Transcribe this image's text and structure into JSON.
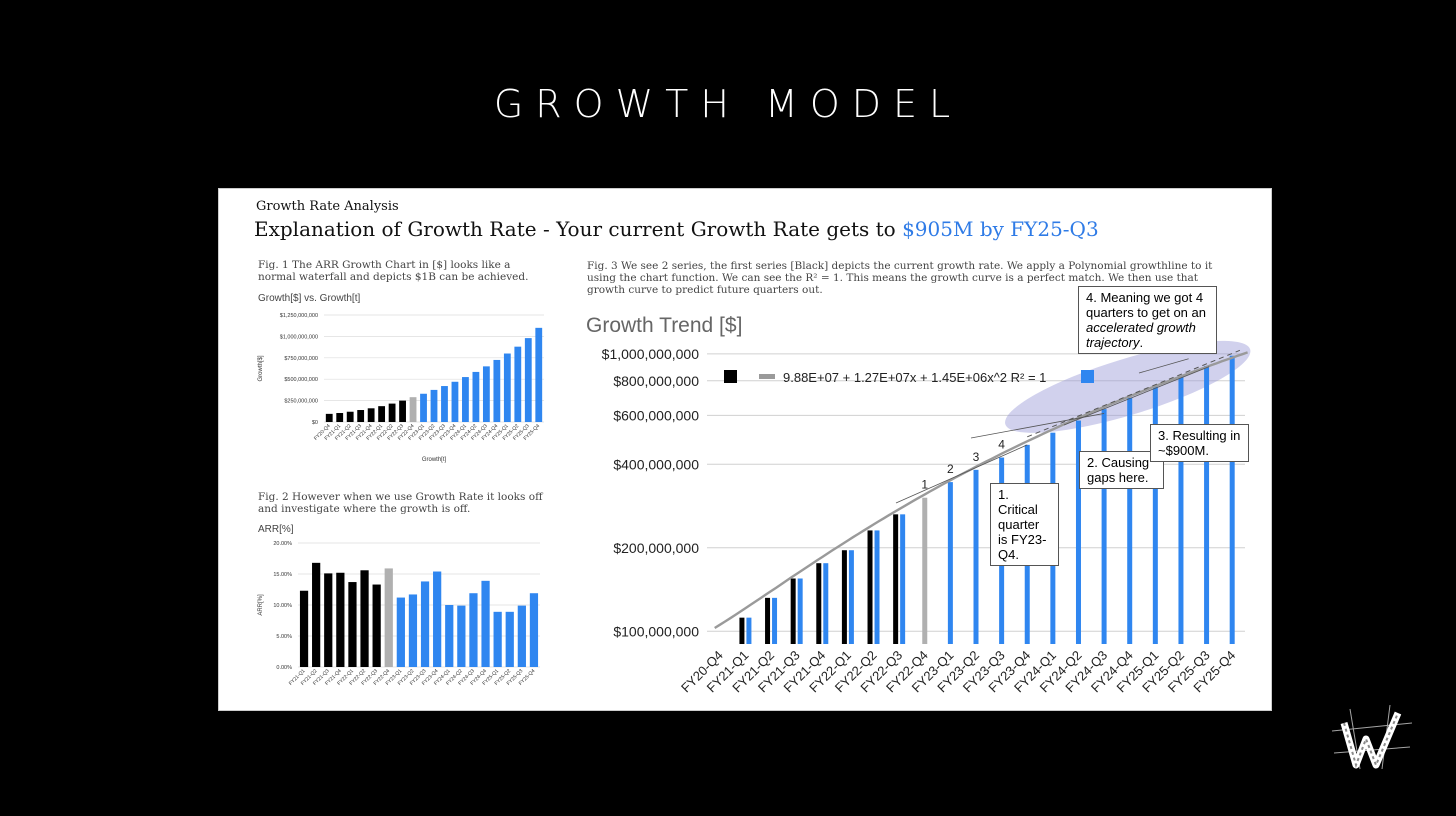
{
  "slide": {
    "title": "GROWTH MODEL"
  },
  "card": {
    "small_title": "Growth Rate Analysis",
    "headline": "Explanation of Growth Rate - Your current Growth Rate gets to ",
    "headline_highlight": "$905M by FY25-Q3",
    "fig1_caption": "Fig. 1 The ARR Growth Chart in [$] looks like a normal waterfall and depicts $1B can be achieved.",
    "fig2_caption": "Fig. 2  However when we use Growth Rate it looks off and investigate where the growth is off.",
    "fig3_caption": "Fig. 3 We see 2 series, the first series [Black] depicts the current growth rate.  We apply a Polynomial growthline to it using the chart function.  We can see the R² = 1.  This means the growth curve is a perfect match.  We then use that growth curve to predict future quarters out."
  },
  "callouts": {
    "c1": "1. Critical quarter is FY23-Q4.",
    "c2": "2. Causing gaps here.",
    "c3": "3. Resulting in ~$900M.",
    "c4_line1": "4. Meaning we got 4 quarters to get on an ",
    "c4_italic": "accelerated growth trajectory",
    "c4_end": "."
  },
  "chart_data": [
    {
      "type": "bar",
      "title": "Growth[$] vs. Growth[t]",
      "xlabel": "Growth[t]",
      "ylabel": "Growth[$]",
      "ylim": [
        0,
        1250000000
      ],
      "yticks": [
        "$0",
        "$250,000,000",
        "$500,000,000",
        "$750,000,000",
        "$1,000,000,000",
        "$1,250,000,000"
      ],
      "categories": [
        "FY20-Q4",
        "FY21-Q1",
        "FY21-Q2",
        "FY21-Q3",
        "FY21-Q4",
        "FY22-Q1",
        "FY22-Q2",
        "FY22-Q3",
        "FY22-Q4",
        "FY23-Q1",
        "FY23-Q2",
        "FY23-Q3",
        "FY23-Q4",
        "FY24-Q1",
        "FY24-Q2",
        "FY24-Q3",
        "FY24-Q4",
        "FY25-Q1",
        "FY25-Q2",
        "FY25-Q3",
        "FY25-Q4"
      ],
      "values": [
        95000000,
        105000000,
        120000000,
        140000000,
        160000000,
        185000000,
        215000000,
        250000000,
        290000000,
        330000000,
        375000000,
        420000000,
        470000000,
        525000000,
        585000000,
        650000000,
        725000000,
        800000000,
        880000000,
        980000000,
        1100000000
      ],
      "colors": [
        "#000",
        "#000",
        "#000",
        "#000",
        "#000",
        "#000",
        "#000",
        "#000",
        "#b0b0b0",
        "#2f86f0",
        "#2f86f0",
        "#2f86f0",
        "#2f86f0",
        "#2f86f0",
        "#2f86f0",
        "#2f86f0",
        "#2f86f0",
        "#2f86f0",
        "#2f86f0",
        "#2f86f0",
        "#2f86f0"
      ],
      "grid": true
    },
    {
      "type": "bar",
      "title": "ARR[%]",
      "ylabel": "ARR[%]",
      "ylim": [
        0,
        20
      ],
      "yticks": [
        "0.00%",
        "5.00%",
        "10.00%",
        "15.00%",
        "20.00%"
      ],
      "categories": [
        "FY21-Q1",
        "FY21-Q2",
        "FY21-Q3",
        "FY21-Q4",
        "FY22-Q1",
        "FY22-Q2",
        "FY22-Q3",
        "FY22-Q4",
        "FY23-Q1",
        "FY23-Q2",
        "FY23-Q3",
        "FY23-Q4",
        "FY24-Q1",
        "FY24-Q2",
        "FY24-Q3",
        "FY24-Q4",
        "FY25-Q1",
        "FY25-Q2",
        "FY25-Q3",
        "FY25-Q4"
      ],
      "values": [
        12.3,
        16.8,
        15.1,
        15.2,
        13.7,
        15.6,
        13.3,
        15.9,
        11.2,
        11.7,
        13.8,
        15.4,
        10.0,
        9.9,
        11.9,
        13.9,
        8.9,
        8.9,
        9.9,
        11.9
      ],
      "colors": [
        "#000",
        "#000",
        "#000",
        "#000",
        "#000",
        "#000",
        "#000",
        "#b0b0b0",
        "#2f86f0",
        "#2f86f0",
        "#2f86f0",
        "#2f86f0",
        "#2f86f0",
        "#2f86f0",
        "#2f86f0",
        "#2f86f0",
        "#2f86f0",
        "#2f86f0",
        "#2f86f0",
        "#2f86f0"
      ],
      "grid": true
    },
    {
      "type": "bar",
      "title": "Growth Trend [$]",
      "scale": "log",
      "ylim": [
        90000000,
        1050000000
      ],
      "yticks": [
        {
          "label": "$100,000,000",
          "value": 100000000
        },
        {
          "label": "$200,000,000",
          "value": 200000000
        },
        {
          "label": "$400,000,000",
          "value": 400000000
        },
        {
          "label": "$600,000,000",
          "value": 600000000
        },
        {
          "label": "$800,000,000",
          "value": 800000000
        },
        {
          "label": "$1,000,000,000",
          "value": 1000000000
        }
      ],
      "categories": [
        "FY20-Q4",
        "FY21-Q1",
        "FY21-Q2",
        "FY21-Q3",
        "FY21-Q4",
        "FY22-Q1",
        "FY22-Q2",
        "FY22-Q3",
        "FY22-Q4",
        "FY23-Q1",
        "FY23-Q2",
        "FY23-Q3",
        "FY23-Q4",
        "FY24-Q1",
        "FY24-Q2",
        "FY24-Q3",
        "FY24-Q4",
        "FY25-Q1",
        "FY25-Q2",
        "FY25-Q3",
        "FY25-Q4"
      ],
      "series": [
        {
          "values": [
            null,
            112000000,
            132000000,
            155000000,
            176000000,
            196000000,
            231000000,
            264000000,
            null,
            null,
            null,
            null,
            null,
            null,
            null,
            null,
            null,
            null,
            null,
            null,
            null
          ],
          "color": "#000"
        },
        {
          "values": [
            null,
            112000000,
            132000000,
            155000000,
            176000000,
            196000000,
            231000000,
            264000000,
            303000000,
            345000000,
            382000000,
            423000000,
            470000000,
            520000000,
            575000000,
            632000000,
            695000000,
            762000000,
            832000000,
            905000000,
            985000000
          ],
          "color": "#2f86f0"
        }
      ],
      "trendline": {
        "label": "9.88E+07 + 1.27E+07x + 1.45E+06x^2 R² = 1",
        "type": "polynomial",
        "color": "#9a9a9a"
      },
      "bar_annotations": [
        {
          "category": "FY22-Q4",
          "text": "1"
        },
        {
          "category": "FY23-Q1",
          "text": "2"
        },
        {
          "category": "FY23-Q2",
          "text": "3"
        },
        {
          "category": "FY23-Q3",
          "text": "4"
        }
      ],
      "legend": "top-left",
      "grid": true
    }
  ]
}
